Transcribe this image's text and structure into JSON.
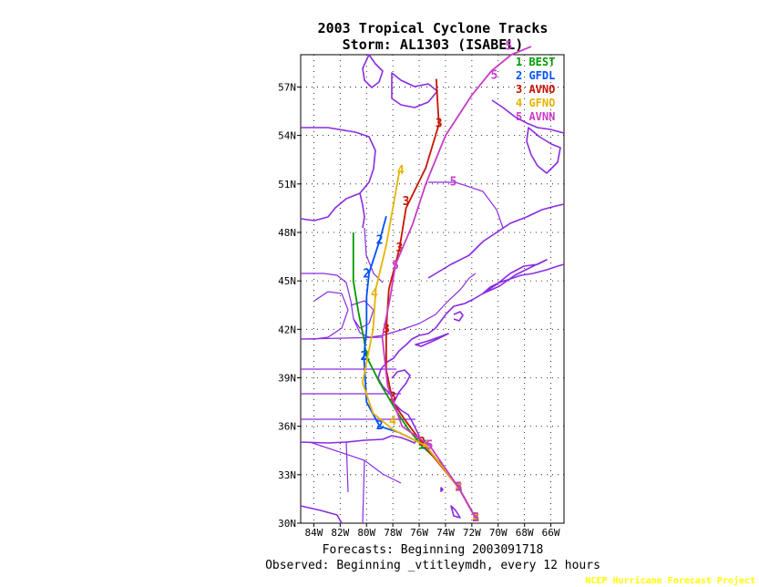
{
  "title_line1": "2003 Tropical Cyclone Tracks",
  "title_line2": "Storm: AL1303 (ISABEL)",
  "footer_forecasts": "Forecasts: Beginning 2003091718",
  "footer_observed": "Observed: Beginning _vtitleymdh, every 12 hours",
  "credit": "NCEP Hurricane Forecast Project",
  "colors": {
    "coast": "#8a2be2",
    "grid": "#000000",
    "credit": "#ffff00"
  },
  "chart_data": {
    "type": "map-tracks",
    "lon_range": [
      -85,
      -65
    ],
    "lat_range": [
      30,
      59
    ],
    "grid": true,
    "x_ticks": [
      "84W",
      "82W",
      "80W",
      "78W",
      "76W",
      "74W",
      "72W",
      "70W",
      "68W",
      "66W"
    ],
    "x_tick_values": [
      -84,
      -82,
      -80,
      -78,
      -76,
      -74,
      -72,
      -70,
      -68,
      -66
    ],
    "y_ticks": [
      "30N",
      "33N",
      "36N",
      "39N",
      "42N",
      "45N",
      "48N",
      "51N",
      "54N",
      "57N"
    ],
    "y_tick_values": [
      30,
      33,
      36,
      39,
      42,
      45,
      48,
      51,
      54,
      57
    ],
    "legend_position": "top-right",
    "series": [
      {
        "id": "1",
        "name": "BEST",
        "color": "#009a00",
        "points": [
          [
            -71.7,
            30.3
          ],
          [
            -73.0,
            32.2
          ],
          [
            -74.5,
            33.8
          ],
          [
            -75.8,
            34.8
          ],
          [
            -76.8,
            35.8
          ],
          [
            -77.7,
            36.9
          ],
          [
            -79.0,
            38.7
          ],
          [
            -80.0,
            40.3
          ],
          [
            -80.2,
            41.4
          ],
          [
            -80.6,
            43.0
          ],
          [
            -81.0,
            45.0
          ],
          [
            -81.0,
            46.0
          ],
          [
            -81.0,
            47.2
          ],
          [
            -81.0,
            48.0
          ]
        ],
        "labels": [
          [
            -71.7,
            30.3
          ],
          [
            -73.0,
            32.2
          ],
          [
            -75.8,
            34.8
          ],
          [
            -80.0,
            40.3
          ]
        ]
      },
      {
        "id": "2",
        "name": "GFDL",
        "color": "#0050ff",
        "points": [
          [
            -71.7,
            30.3
          ],
          [
            -73.0,
            32.2
          ],
          [
            -75.5,
            34.8
          ],
          [
            -77.5,
            35.6
          ],
          [
            -79.0,
            36.0
          ],
          [
            -80.0,
            37.5
          ],
          [
            -80.2,
            40.3
          ],
          [
            -80.0,
            42.0
          ],
          [
            -80.0,
            44.0
          ],
          [
            -79.8,
            45.5
          ],
          [
            -79.0,
            47.5
          ],
          [
            -78.5,
            49.0
          ]
        ],
        "labels": [
          [
            -71.7,
            30.3
          ],
          [
            -73.0,
            32.2
          ],
          [
            -75.5,
            34.8
          ],
          [
            -79.0,
            36.0
          ],
          [
            -80.2,
            40.3
          ],
          [
            -80.0,
            45.4
          ],
          [
            -79.0,
            47.5
          ]
        ]
      },
      {
        "id": "3",
        "name": "AVNO",
        "color": "#c81400",
        "points": [
          [
            -71.7,
            30.3
          ],
          [
            -73.0,
            32.2
          ],
          [
            -75.8,
            35.0
          ],
          [
            -77.0,
            36.3
          ],
          [
            -78.0,
            37.5
          ],
          [
            -78.5,
            39.5
          ],
          [
            -78.5,
            42.0
          ],
          [
            -78.3,
            44.5
          ],
          [
            -77.5,
            47.0
          ],
          [
            -77.0,
            49.5
          ],
          [
            -75.5,
            52.0
          ],
          [
            -74.5,
            54.7
          ],
          [
            -74.6,
            56.0
          ],
          [
            -74.7,
            57.5
          ]
        ],
        "labels": [
          [
            -71.7,
            30.3
          ],
          [
            -73.0,
            32.2
          ],
          [
            -75.8,
            35.0
          ],
          [
            -78.0,
            37.8
          ],
          [
            -78.5,
            42.0
          ],
          [
            -77.5,
            47.0
          ],
          [
            -77.0,
            49.9
          ],
          [
            -74.5,
            54.7
          ]
        ]
      },
      {
        "id": "4",
        "name": "GFNO",
        "color": "#e6b400",
        "points": [
          [
            -71.7,
            30.3
          ],
          [
            -73.0,
            32.2
          ],
          [
            -75.5,
            34.8
          ],
          [
            -78.0,
            35.8
          ],
          [
            -79.5,
            36.8
          ],
          [
            -80.3,
            38.7
          ],
          [
            -79.5,
            42.0
          ],
          [
            -79.3,
            44.5
          ],
          [
            -78.5,
            47.2
          ],
          [
            -78.0,
            49.5
          ],
          [
            -77.5,
            51.8
          ]
        ],
        "labels": [
          [
            -71.7,
            30.3
          ],
          [
            -73.0,
            32.2
          ],
          [
            -75.5,
            34.8
          ],
          [
            -78.0,
            36.3
          ],
          [
            -79.4,
            44.2
          ],
          [
            -77.4,
            51.8
          ]
        ]
      },
      {
        "id": "5",
        "name": "AVNN",
        "color": "#c83cc8",
        "points": [
          [
            -71.7,
            30.3
          ],
          [
            -73.0,
            32.2
          ],
          [
            -75.2,
            34.8
          ],
          [
            -77.3,
            36.0
          ],
          [
            -78.4,
            38.5
          ],
          [
            -78.8,
            41.5
          ],
          [
            -78.2,
            44.0
          ],
          [
            -77.8,
            46.0
          ],
          [
            -76.5,
            48.5
          ],
          [
            -75.5,
            51.0
          ],
          [
            -74.0,
            54.0
          ],
          [
            -72.0,
            56.5
          ],
          [
            -70.5,
            58.0
          ],
          [
            -69.0,
            59.0
          ],
          [
            -67.5,
            59.5
          ]
        ],
        "labels": [
          [
            -71.7,
            30.3
          ],
          [
            -73.0,
            32.2
          ],
          [
            -75.2,
            34.8
          ],
          [
            -77.8,
            45.9
          ],
          [
            -73.4,
            51.1
          ],
          [
            -70.3,
            57.7
          ],
          [
            -69.2,
            59.5
          ]
        ]
      }
    ]
  }
}
